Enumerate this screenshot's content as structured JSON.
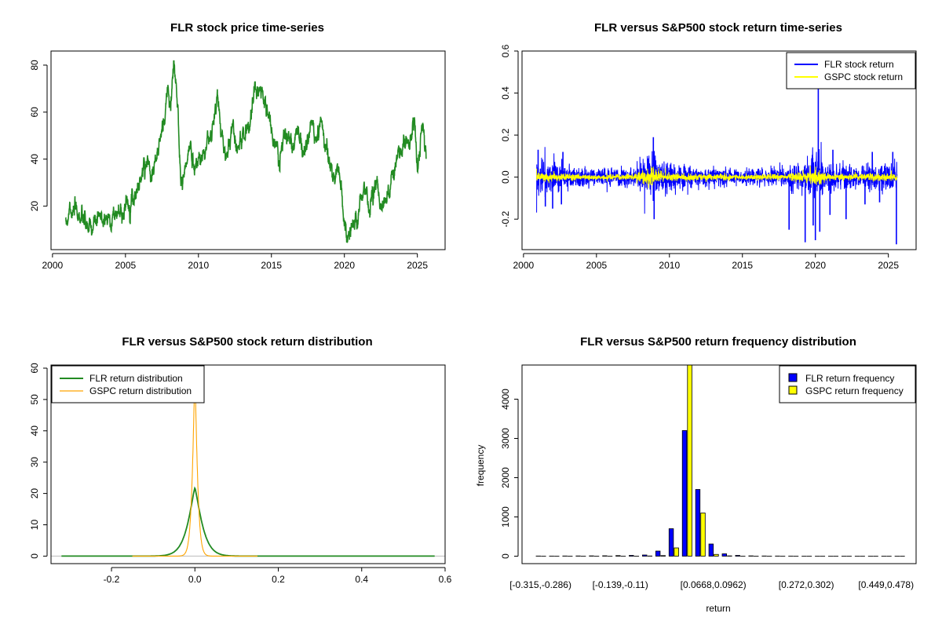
{
  "chart_data": [
    {
      "id": "price",
      "type": "line",
      "title": "FLR stock price time-series",
      "xlabel": "",
      "ylabel": "",
      "xlim": [
        1999.9,
        2026.9
      ],
      "ylim": [
        1.5,
        86
      ],
      "xticks": [
        2000,
        2005,
        2010,
        2015,
        2020,
        2025
      ],
      "yticks": [
        20,
        40,
        60,
        80
      ],
      "series": [
        {
          "name": "FLR stock price",
          "color": "#228B22",
          "x": [
            2000.9,
            2001.2,
            2001.4,
            2001.7,
            2002.0,
            2002.3,
            2002.6,
            2002.9,
            2003.2,
            2003.6,
            2004.0,
            2004.4,
            2004.8,
            2005.2,
            2005.6,
            2006.0,
            2006.4,
            2006.9,
            2007.3,
            2007.6,
            2007.9,
            2008.1,
            2008.3,
            2008.6,
            2008.8,
            2009.1,
            2009.4,
            2009.7,
            2010.1,
            2010.5,
            2010.9,
            2011.3,
            2011.6,
            2011.9,
            2012.3,
            2012.7,
            2013.1,
            2013.5,
            2013.9,
            2014.3,
            2014.7,
            2015.1,
            2015.5,
            2016.0,
            2016.5,
            2016.9,
            2017.4,
            2017.8,
            2018.1,
            2018.4,
            2018.8,
            2019.2,
            2019.6,
            2019.9,
            2020.2,
            2020.5,
            2020.9,
            2021.3,
            2021.7,
            2022.1,
            2022.5,
            2022.9,
            2023.3,
            2023.7,
            2024.1,
            2024.5,
            2024.8,
            2025.0,
            2025.2,
            2025.4,
            2025.6
          ],
          "y": [
            10,
            22,
            16,
            18,
            14,
            12,
            9,
            13,
            14,
            15,
            15,
            17,
            18,
            22,
            25,
            30,
            40,
            35,
            45,
            55,
            70,
            60,
            82,
            60,
            30,
            35,
            45,
            38,
            40,
            45,
            50,
            65,
            50,
            40,
            55,
            45,
            50,
            55,
            70,
            72,
            60,
            50,
            40,
            50,
            45,
            50,
            45,
            55,
            48,
            57,
            45,
            30,
            35,
            20,
            4,
            12,
            15,
            25,
            20,
            30,
            20,
            25,
            35,
            40,
            45,
            50,
            55,
            35,
            45,
            56,
            40
          ]
        }
      ]
    },
    {
      "id": "returns",
      "type": "line",
      "title": "FLR versus S&P500 stock return time-series",
      "xlabel": "",
      "ylabel": "",
      "xlim": [
        1999.9,
        2026.9
      ],
      "ylim": [
        -0.345,
        0.6
      ],
      "xticks": [
        2000,
        2005,
        2010,
        2015,
        2020,
        2025
      ],
      "yticks": [
        -0.2,
        0.0,
        0.2,
        0.4,
        0.6
      ],
      "yticklabels": [
        "-0.2",
        "0.0",
        "0.2",
        "0.4",
        "0.6"
      ],
      "legend": {
        "position": "top-right",
        "entries": [
          "FLR stock return",
          "GSPC stock return"
        ]
      },
      "series": [
        {
          "name": "FLR stock return",
          "color": "#0000FF",
          "x_range": [
            2000.9,
            2025.6
          ],
          "envelope_years": [
            2000.9,
            2002.5,
            2005,
            2007.5,
            2008.8,
            2009.5,
            2012,
            2015,
            2018,
            2020.2,
            2021,
            2023,
            2025.6
          ],
          "envelope_sd": [
            0.055,
            0.045,
            0.025,
            0.03,
            0.08,
            0.05,
            0.03,
            0.022,
            0.03,
            0.07,
            0.04,
            0.035,
            0.04
          ]
        },
        {
          "name": "GSPC stock return",
          "color": "#FFFF00",
          "x_range": [
            2000.9,
            2025.6
          ],
          "envelope_years": [
            2000.9,
            2002.5,
            2005,
            2007.5,
            2008.8,
            2009.5,
            2012,
            2015,
            2018,
            2020.2,
            2021,
            2023,
            2025.6
          ],
          "envelope_sd": [
            0.013,
            0.013,
            0.007,
            0.01,
            0.03,
            0.015,
            0.01,
            0.008,
            0.01,
            0.025,
            0.01,
            0.01,
            0.012
          ]
        }
      ],
      "spikes": [
        {
          "x": 2001.0,
          "y": 0.13
        },
        {
          "x": 2002.7,
          "y": 0.12
        },
        {
          "x": 2008.9,
          "y": 0.19
        },
        {
          "x": 2020.2,
          "y": 0.43
        },
        {
          "x": 2021.2,
          "y": 0.13
        },
        {
          "x": 2023.9,
          "y": 0.12
        },
        {
          "x": 2025.3,
          "y": 0.12
        },
        {
          "x": 2001.5,
          "y": -0.14
        },
        {
          "x": 2002.0,
          "y": -0.15
        },
        {
          "x": 2002.6,
          "y": -0.13
        },
        {
          "x": 2008.95,
          "y": -0.2
        },
        {
          "x": 2018.2,
          "y": -0.25
        },
        {
          "x": 2019.3,
          "y": -0.31
        },
        {
          "x": 2019.85,
          "y": -0.23
        },
        {
          "x": 2020.0,
          "y": -0.3
        },
        {
          "x": 2020.3,
          "y": -0.26
        },
        {
          "x": 2021.0,
          "y": -0.18
        },
        {
          "x": 2022.1,
          "y": -0.2
        },
        {
          "x": 2023.4,
          "y": -0.13
        },
        {
          "x": 2024.4,
          "y": -0.12
        },
        {
          "x": 2025.55,
          "y": -0.32
        }
      ]
    },
    {
      "id": "density",
      "type": "line",
      "title": "FLR versus S&P500 stock return distribution",
      "xlabel": "",
      "ylabel": "",
      "xlim": [
        -0.345,
        0.6
      ],
      "ylim": [
        -2.4,
        61
      ],
      "xticks": [
        -0.2,
        0.0,
        0.2,
        0.4,
        0.6
      ],
      "xticklabels": [
        "-0.2",
        "0.0",
        "0.2",
        "0.4",
        "0.6"
      ],
      "yticks": [
        0,
        10,
        20,
        30,
        40,
        50,
        60
      ],
      "legend": {
        "position": "top-left",
        "entries": [
          "FLR return distribution",
          "GSPC return distribution"
        ]
      },
      "series": [
        {
          "name": "FLR return distribution",
          "color": "#228B22",
          "peak": 21.8,
          "center": 0.0,
          "x_range": [
            -0.32,
            0.575
          ]
        },
        {
          "name": "GSPC return distribution",
          "color": "#FFA500",
          "peak": 58.0,
          "center": 0.0,
          "x_range": [
            -0.15,
            0.15
          ]
        }
      ]
    },
    {
      "id": "frequency",
      "type": "bar",
      "title": "FLR versus S&P500 return frequency distribution",
      "xlabel": "return",
      "ylabel": "frequency",
      "ylim": [
        -190,
        4870
      ],
      "yticks": [
        0,
        1000,
        2000,
        3000,
        4000
      ],
      "legend": {
        "position": "top-right",
        "entries": [
          "FLR return frequency",
          "GSPC return frequency"
        ]
      },
      "tick_labels": [
        "[-0.315,-0.286)",
        "[-0.139,-0.11)",
        "[0.0668,0.0962)",
        "[0.272,0.302)",
        "[0.449,0.478)"
      ],
      "tick_label_bins": [
        0,
        6,
        13,
        20,
        26
      ],
      "bin_count": 28,
      "series": [
        {
          "name": "FLR return frequency",
          "color": "#0000FF",
          "values": [
            4,
            3,
            5,
            6,
            8,
            10,
            15,
            20,
            30,
            130,
            700,
            3200,
            1700,
            310,
            60,
            20,
            8,
            5,
            4,
            3,
            2,
            2,
            2,
            2,
            2,
            2,
            2,
            2
          ]
        },
        {
          "name": "GSPC return frequency",
          "color": "#FFFF00",
          "values": [
            0,
            0,
            0,
            0,
            0,
            0,
            0,
            0,
            5,
            15,
            210,
            4870,
            1100,
            45,
            8,
            2,
            0,
            0,
            0,
            0,
            0,
            0,
            0,
            0,
            0,
            0,
            0,
            0
          ]
        }
      ]
    }
  ]
}
